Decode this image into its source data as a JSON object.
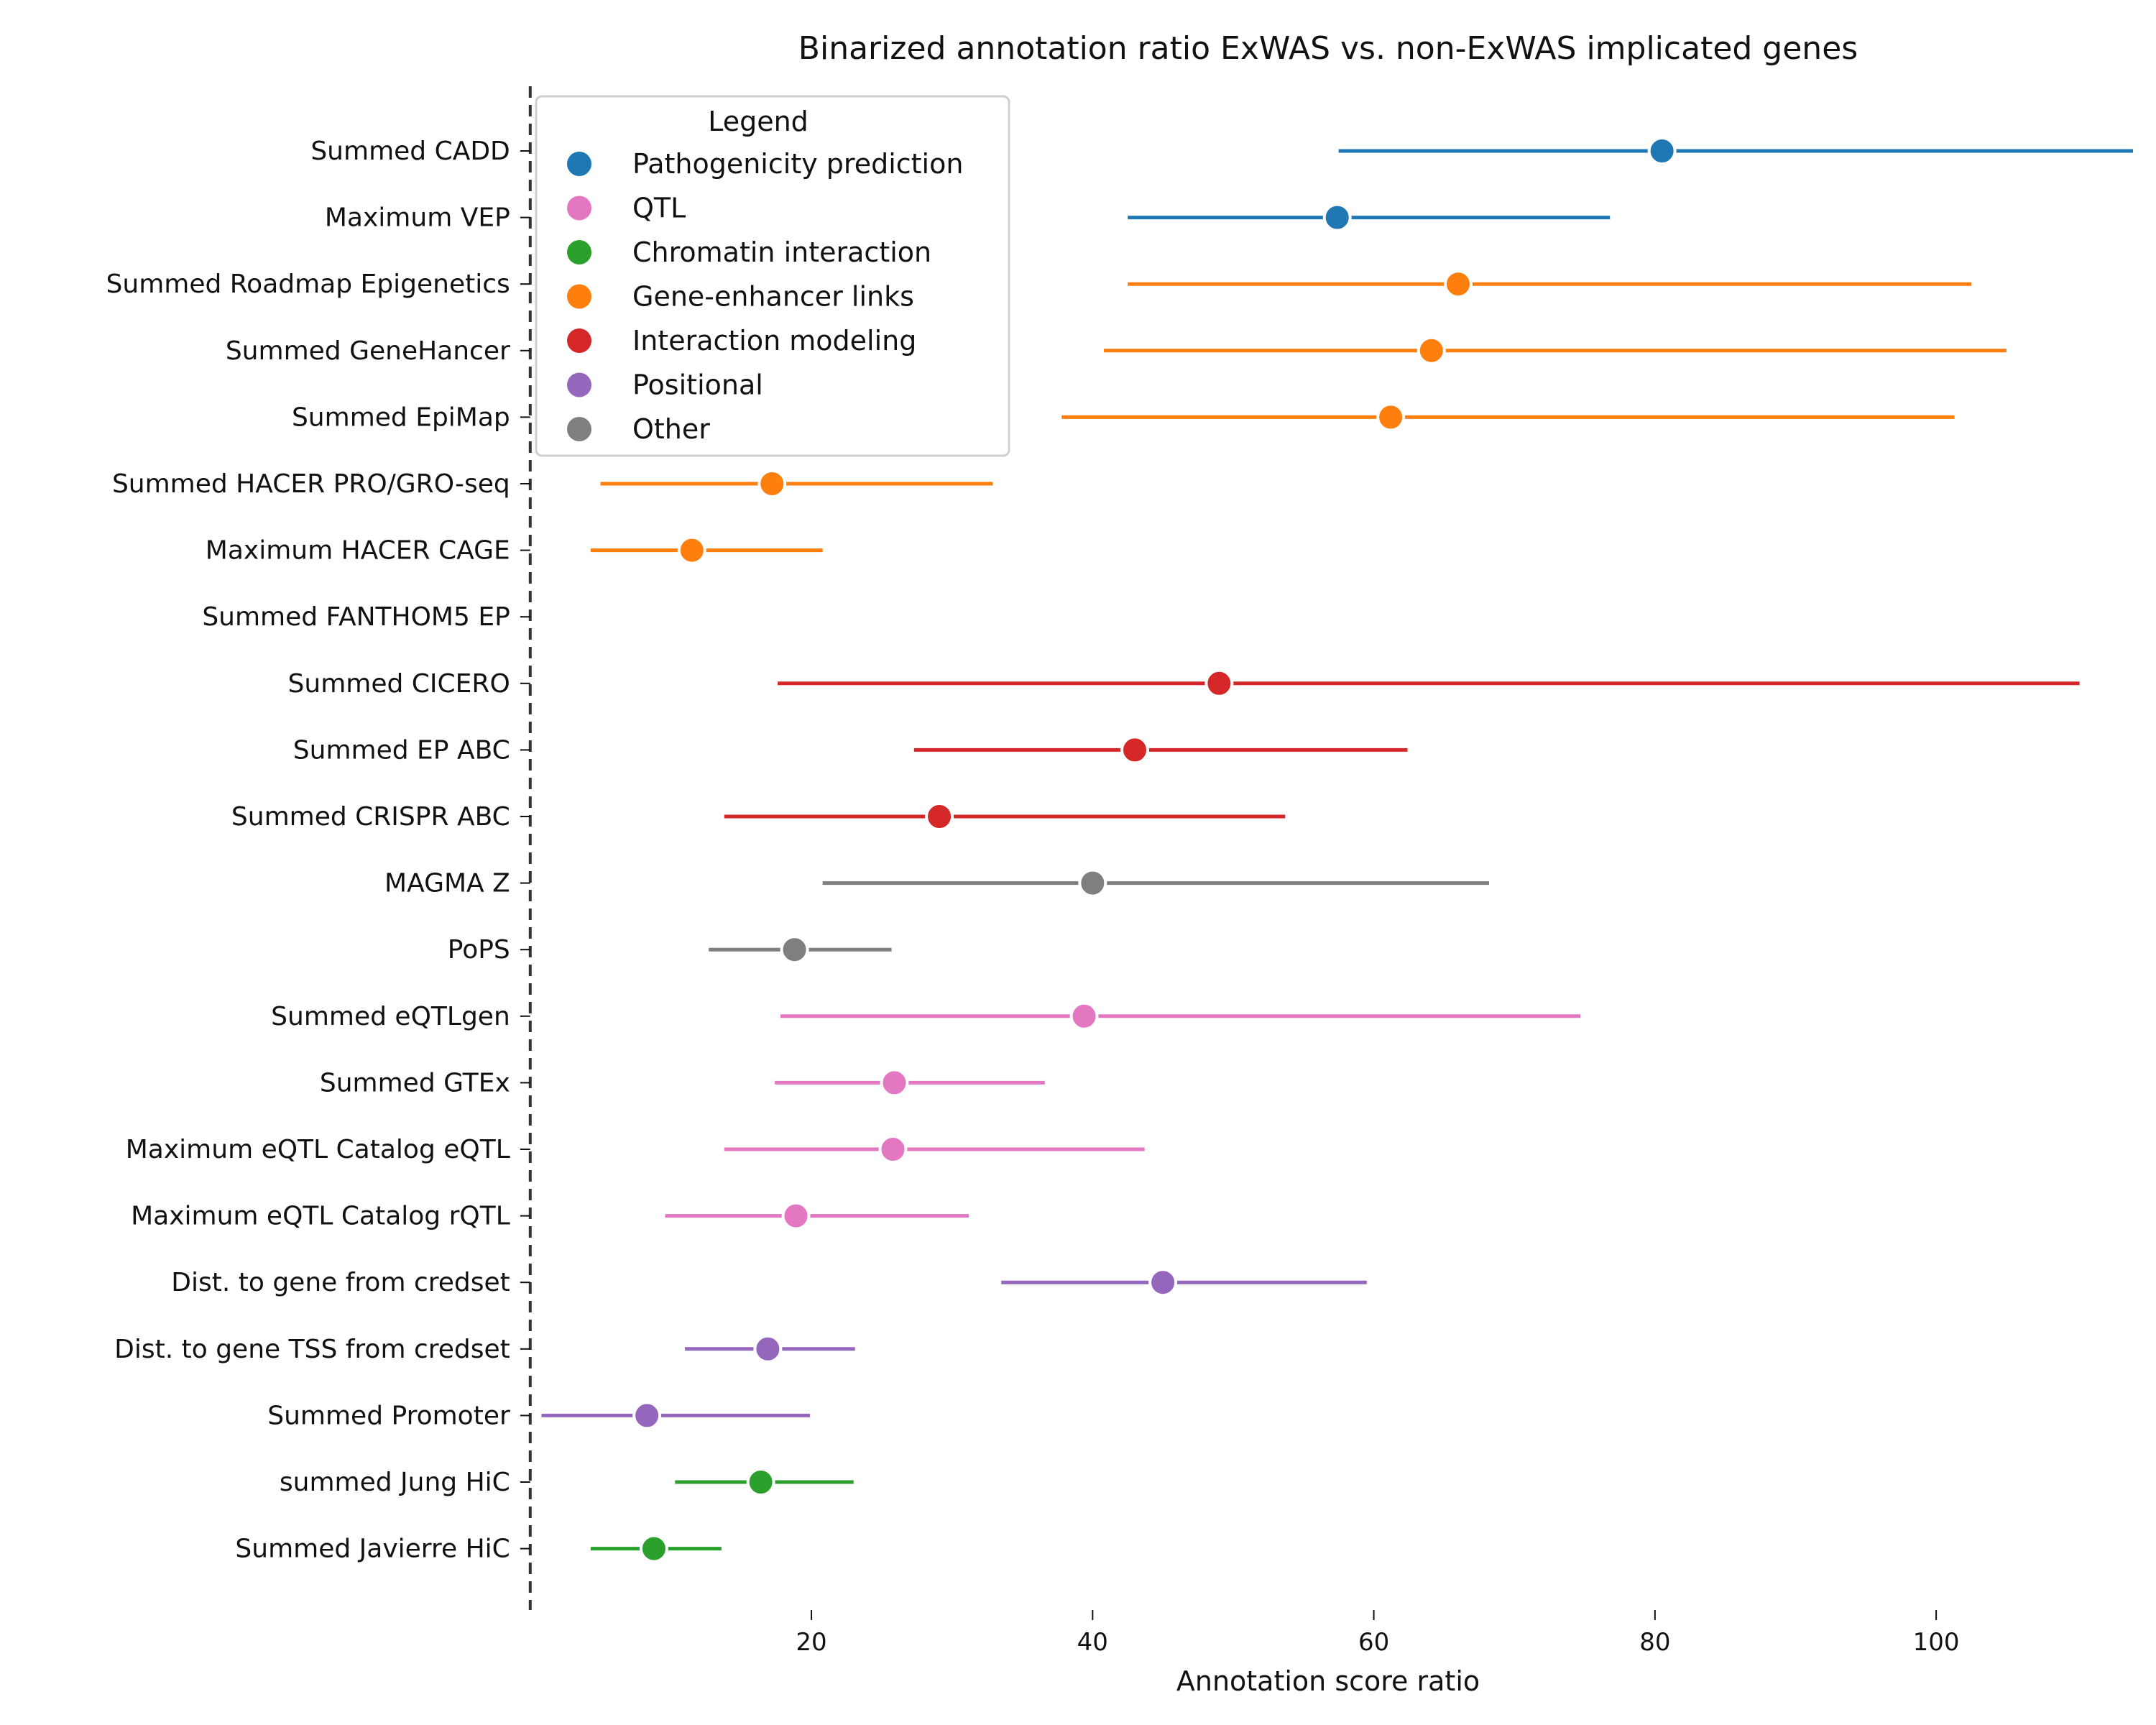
{
  "chart_data": {
    "type": "forest",
    "title": "Binarized annotation ratio ExWAS vs. non-ExWAS implicated genes",
    "xlabel": "Annotation score ratio",
    "ylabel": "",
    "xlim": [
      -0.5,
      114
    ],
    "xticks": [
      20,
      40,
      60,
      80,
      100
    ],
    "reference_line": {
      "x": 0,
      "style": "dashed"
    },
    "legend": {
      "title": "Legend",
      "placement": "top-left",
      "entries": [
        {
          "name": "Pathogenicity prediction",
          "color": "#1f77b4"
        },
        {
          "name": "QTL",
          "color": "#e377c2"
        },
        {
          "name": "Chromatin interaction",
          "color": "#2ca02c"
        },
        {
          "name": "Gene-enhancer links",
          "color": "#ff7f0e"
        },
        {
          "name": "Interaction modeling",
          "color": "#d62728"
        },
        {
          "name": "Positional",
          "color": "#9467bd"
        },
        {
          "name": "Other",
          "color": "#7f7f7f"
        }
      ]
    },
    "rows": [
      {
        "label": "Summed CADD",
        "category": "Pathogenicity prediction",
        "value": 80.5,
        "lower": 57.5,
        "upper": 114
      },
      {
        "label": "Maximum VEP",
        "category": "Pathogenicity prediction",
        "value": 57.4,
        "lower": 42.5,
        "upper": 76.8
      },
      {
        "label": "Summed Roadmap Epigenetics",
        "category": "Gene-enhancer links",
        "value": 66.0,
        "lower": 42.5,
        "upper": 102.5
      },
      {
        "label": "Summed GeneHancer",
        "category": "Gene-enhancer links",
        "value": 64.1,
        "lower": 40.8,
        "upper": 105.0
      },
      {
        "label": "Summed EpiMap",
        "category": "Gene-enhancer links",
        "value": 61.2,
        "lower": 37.8,
        "upper": 101.3
      },
      {
        "label": "Summed HACER PRO/GRO-seq",
        "category": "Gene-enhancer links",
        "value": 17.2,
        "lower": 5.0,
        "upper": 32.9
      },
      {
        "label": "Maximum HACER CAGE",
        "category": "Gene-enhancer links",
        "value": 11.5,
        "lower": 4.3,
        "upper": 20.8
      },
      {
        "label": "Summed FANTHOM5 EP",
        "category": "Gene-enhancer links",
        "value": null,
        "lower": null,
        "upper": null
      },
      {
        "label": "Summed CICERO",
        "category": "Interaction modeling",
        "value": 49.0,
        "lower": 17.6,
        "upper": 110.2
      },
      {
        "label": "Summed EP ABC",
        "category": "Interaction modeling",
        "value": 43.0,
        "lower": 27.3,
        "upper": 62.4
      },
      {
        "label": "Summed CRISPR ABC",
        "category": "Interaction modeling",
        "value": 29.1,
        "lower": 13.8,
        "upper": 53.7
      },
      {
        "label": "MAGMA Z",
        "category": "Other",
        "value": 40.0,
        "lower": 20.8,
        "upper": 68.2
      },
      {
        "label": "PoPS",
        "category": "Other",
        "value": 18.8,
        "lower": 12.7,
        "upper": 25.7
      },
      {
        "label": "Summed eQTLgen",
        "category": "QTL",
        "value": 39.4,
        "lower": 17.8,
        "upper": 74.7
      },
      {
        "label": "Summed GTEx",
        "category": "QTL",
        "value": 25.9,
        "lower": 17.4,
        "upper": 36.6
      },
      {
        "label": "Maximum eQTL Catalog eQTL",
        "category": "QTL",
        "value": 25.8,
        "lower": 13.8,
        "upper": 43.7
      },
      {
        "label": "Maximum eQTL Catalog rQTL",
        "category": "QTL",
        "value": 18.9,
        "lower": 9.6,
        "upper": 31.2
      },
      {
        "label": "Dist. to gene from credset",
        "category": "Positional",
        "value": 45.0,
        "lower": 33.5,
        "upper": 59.5
      },
      {
        "label": "Dist. to gene TSS from credset",
        "category": "Positional",
        "value": 16.9,
        "lower": 11.0,
        "upper": 23.1
      },
      {
        "label": "Summed Promoter",
        "category": "Positional",
        "value": 8.3,
        "lower": 0.8,
        "upper": 19.9
      },
      {
        "label": "summed Jung HiC",
        "category": "Chromatin interaction",
        "value": 16.4,
        "lower": 10.3,
        "upper": 23.0
      },
      {
        "label": "Summed Javierre HiC",
        "category": "Chromatin interaction",
        "value": 8.8,
        "lower": 4.3,
        "upper": 13.6
      }
    ]
  }
}
